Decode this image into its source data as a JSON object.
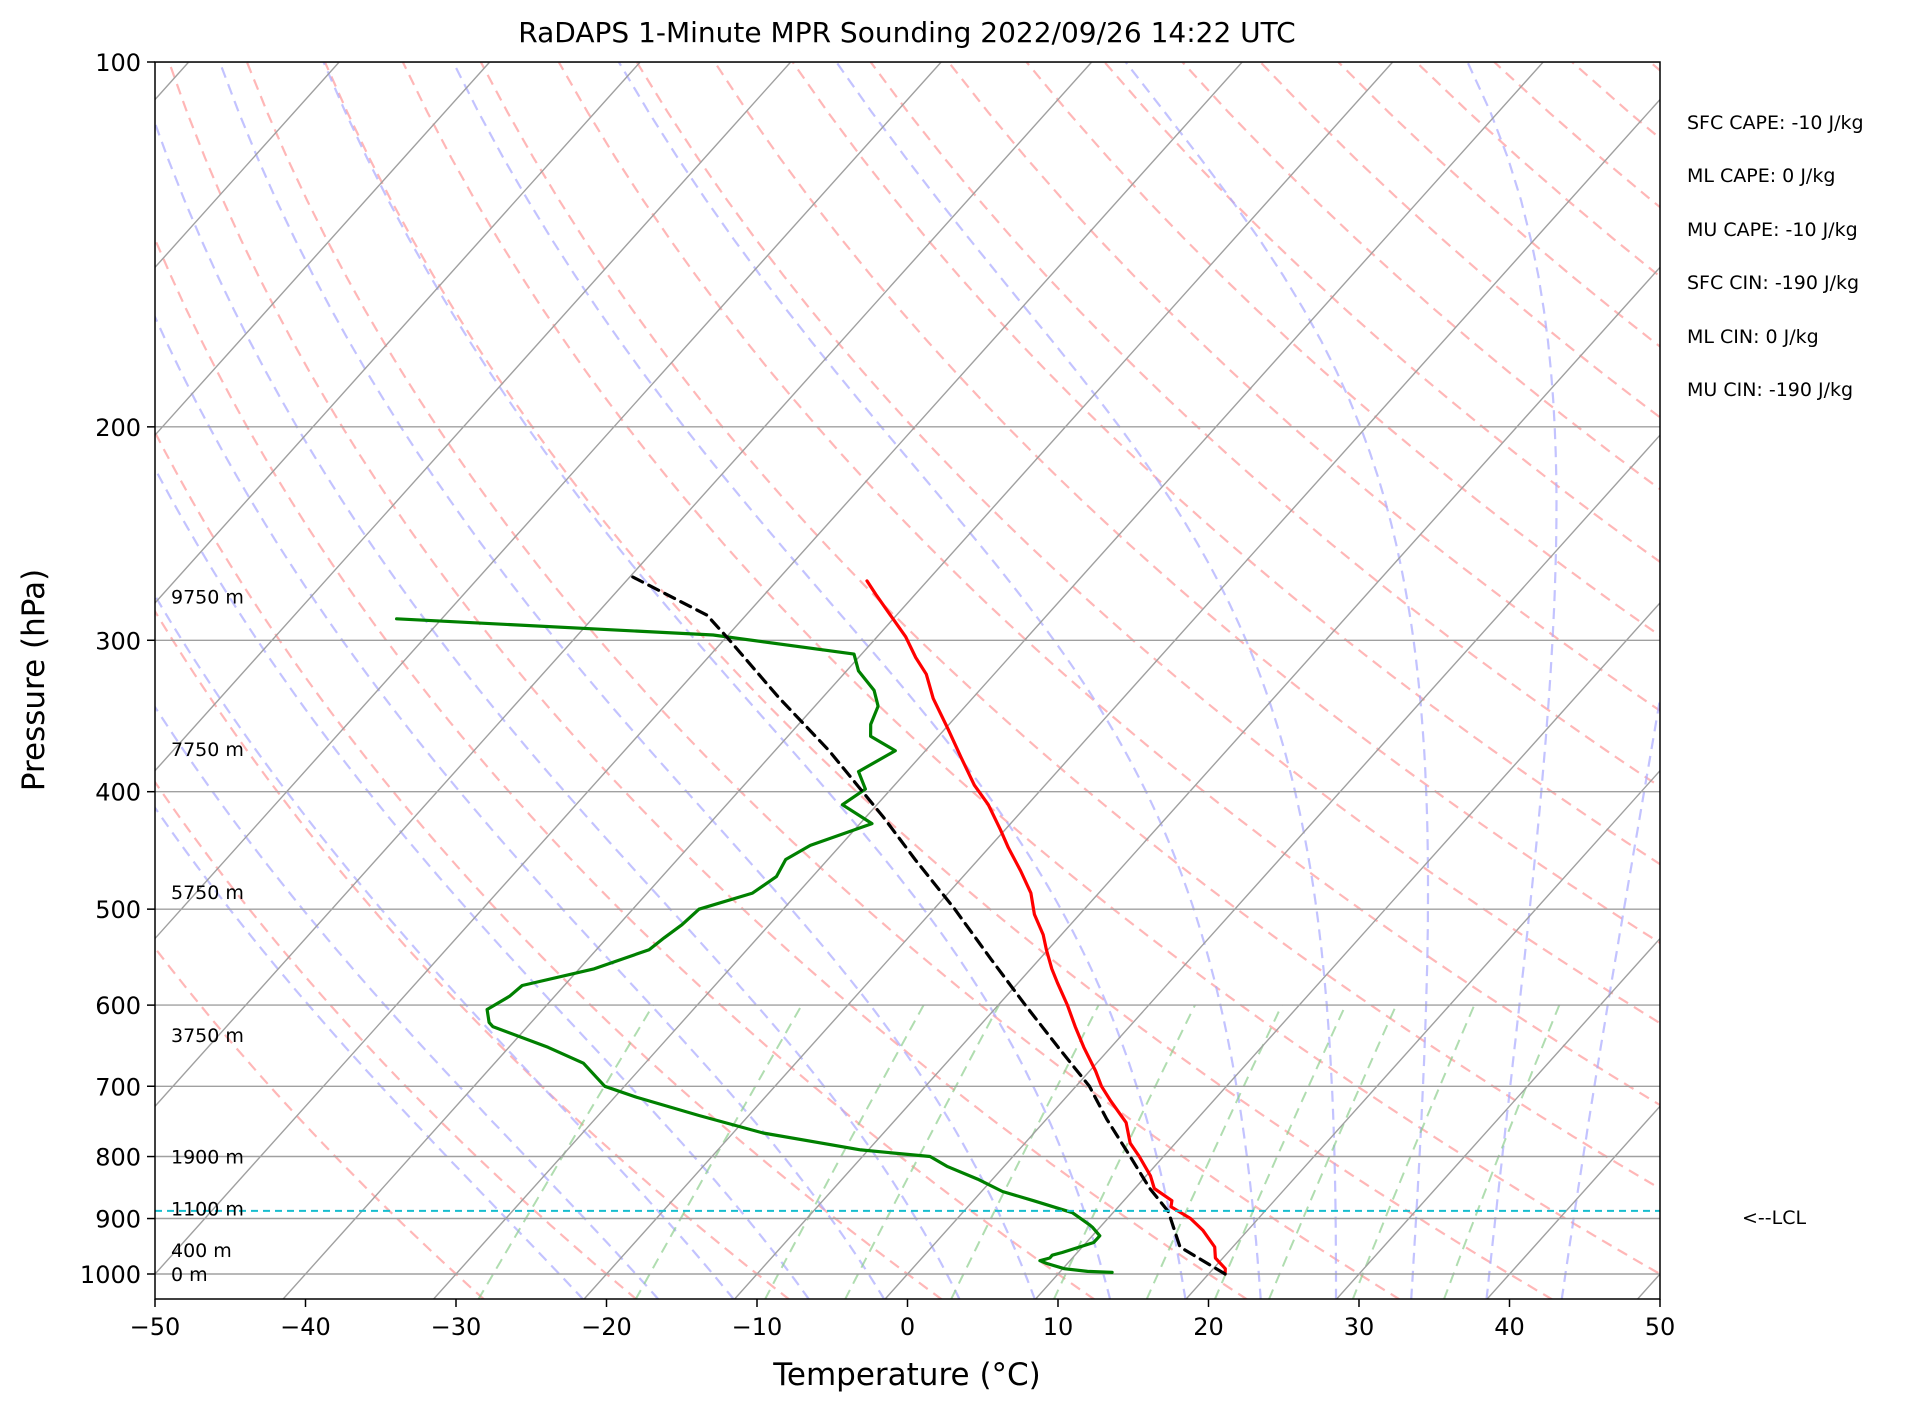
{
  "chart_data": {
    "type": "line",
    "subtype": "skew-t log-p sounding",
    "title": "RaDAPS 1-Minute MPR Sounding 2022/09/26 14:22 UTC",
    "xlabel": "Temperature (°C)",
    "ylabel": "Pressure (hPa)",
    "xlim": [
      -50,
      50
    ],
    "ylim": [
      1050,
      100
    ],
    "y_scale": "log",
    "grid": true,
    "x_ticks": [
      "−50",
      "−40",
      "−30",
      "−20",
      "−10",
      "0",
      "10",
      "20",
      "30",
      "40",
      "50"
    ],
    "y_ticks": [
      "100",
      "200",
      "300",
      "400",
      "500",
      "600",
      "700",
      "800",
      "900",
      "1000"
    ],
    "height_labels": [
      {
        "p": 1000,
        "label": "0 m"
      },
      {
        "p": 955,
        "label": "400 m"
      },
      {
        "p": 883,
        "label": "1100 m"
      },
      {
        "p": 800,
        "label": "1900 m"
      },
      {
        "p": 635,
        "label": "3750 m"
      },
      {
        "p": 484,
        "label": "5750 m"
      },
      {
        "p": 369,
        "label": "7750 m"
      },
      {
        "p": 276,
        "label": "9750 m"
      }
    ],
    "lcl": {
      "p": 887,
      "label": "<--LCL",
      "color": "#17becf"
    },
    "indices": [
      "SFC CAPE: -10 J/kg",
      "ML CAPE: 0 J/kg",
      "MU CAPE: -10 J/kg",
      "SFC CIN: -190 J/kg",
      "ML CIN: 0 J/kg",
      "MU CIN: -190 J/kg"
    ],
    "series": [
      {
        "key": "temperature",
        "color": "#ff0000",
        "points": [
          [
            21.1,
            1000
          ],
          [
            20.8,
            990
          ],
          [
            19.5,
            970
          ],
          [
            18.8,
            950
          ],
          [
            17.0,
            920
          ],
          [
            15.5,
            900
          ],
          [
            13.5,
            880
          ],
          [
            13.2,
            870
          ],
          [
            11.3,
            850
          ],
          [
            10.3,
            830
          ],
          [
            8.4,
            800
          ],
          [
            7.0,
            780
          ],
          [
            5.5,
            750
          ],
          [
            3.2,
            720
          ],
          [
            1.7,
            700
          ],
          [
            0.4,
            680
          ],
          [
            -1.8,
            650
          ],
          [
            -3.6,
            625
          ],
          [
            -5.4,
            600
          ],
          [
            -7.4,
            575
          ],
          [
            -8.6,
            560
          ],
          [
            -10.1,
            540
          ],
          [
            -11.2,
            525
          ],
          [
            -13.0,
            505
          ],
          [
            -14.5,
            485
          ],
          [
            -16.5,
            465
          ],
          [
            -18.7,
            445
          ],
          [
            -20.3,
            430
          ],
          [
            -22.6,
            410
          ],
          [
            -24.7,
            395
          ],
          [
            -27.2,
            375
          ],
          [
            -29.8,
            355
          ],
          [
            -32.6,
            335
          ],
          [
            -34.5,
            320
          ],
          [
            -36.2,
            310
          ],
          [
            -38.1,
            298
          ],
          [
            -40.6,
            285
          ],
          [
            -42.6,
            275
          ],
          [
            -44.0,
            268
          ]
        ]
      },
      {
        "key": "dewpoint",
        "color": "#008000",
        "points": [
          [
            13.5,
            997
          ],
          [
            11.8,
            995
          ],
          [
            10.1,
            990
          ],
          [
            8.6,
            980
          ],
          [
            8.0,
            975
          ],
          [
            8.5,
            970
          ],
          [
            8.5,
            965
          ],
          [
            9.0,
            960
          ],
          [
            10.5,
            942
          ],
          [
            10.5,
            930
          ],
          [
            9.5,
            915
          ],
          [
            9.1,
            910
          ],
          [
            7.3,
            890
          ],
          [
            4.0,
            870
          ],
          [
            1.4,
            855
          ],
          [
            -1.0,
            835
          ],
          [
            -3.8,
            815
          ],
          [
            -5.5,
            800
          ],
          [
            -10.5,
            790
          ],
          [
            -18.0,
            765
          ],
          [
            -23.3,
            740
          ],
          [
            -28.5,
            715
          ],
          [
            -31.3,
            700
          ],
          [
            -34.1,
            670
          ],
          [
            -37.4,
            650
          ],
          [
            -42.3,
            625
          ],
          [
            -42.8,
            620
          ],
          [
            -43.7,
            605
          ],
          [
            -43.0,
            590
          ],
          [
            -42.8,
            578
          ],
          [
            -39.0,
            560
          ],
          [
            -36.5,
            540
          ],
          [
            -36.2,
            528
          ],
          [
            -35.8,
            515
          ],
          [
            -35.6,
            500
          ],
          [
            -33.0,
            485
          ],
          [
            -32.4,
            470
          ],
          [
            -32.8,
            455
          ],
          [
            -32.0,
            443
          ],
          [
            -29.2,
            425
          ],
          [
            -32.3,
            410
          ],
          [
            -31.7,
            398
          ],
          [
            -33.2,
            385
          ],
          [
            -32.0,
            370
          ],
          [
            -34.5,
            360
          ],
          [
            -35.2,
            352
          ],
          [
            -35.8,
            340
          ],
          [
            -37.0,
            330
          ],
          [
            -39.2,
            318
          ],
          [
            -40.5,
            308
          ],
          [
            -51.0,
            297
          ],
          [
            -73.0,
            288
          ]
        ]
      },
      {
        "key": "parcel",
        "color": "#000000",
        "points": [
          [
            21.1,
            1000
          ],
          [
            16.5,
            950
          ],
          [
            13.6,
            888
          ],
          [
            11.0,
            850
          ],
          [
            7.8,
            800
          ],
          [
            4.0,
            745
          ],
          [
            0.9,
            700
          ],
          [
            -3.5,
            650
          ],
          [
            -8.2,
            600
          ],
          [
            -13.2,
            550
          ],
          [
            -18.6,
            500
          ],
          [
            -24.2,
            455
          ],
          [
            -28.8,
            420
          ],
          [
            -36.4,
            370
          ],
          [
            -43.0,
            334
          ],
          [
            -50.0,
            298
          ],
          [
            -52.6,
            286
          ],
          [
            -59.8,
            266
          ]
        ]
      }
    ]
  }
}
